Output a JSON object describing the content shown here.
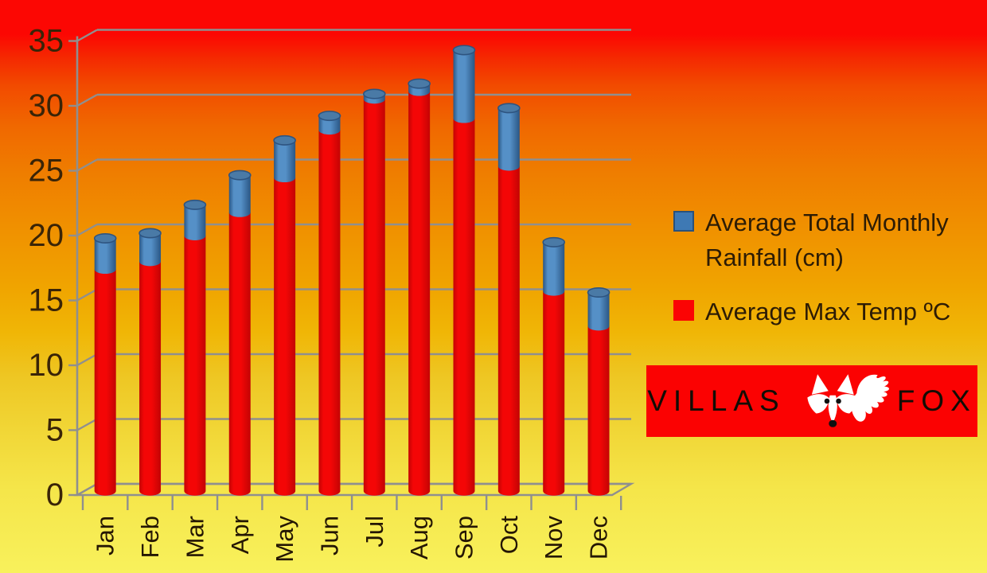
{
  "chart_data": {
    "type": "bar",
    "subtype": "stacked-3d-cylinder",
    "categories": [
      "Jan",
      "Feb",
      "Mar",
      "Apr",
      "May",
      "Jun",
      "Jul",
      "Aug",
      "Sep",
      "Oct",
      "Nov",
      "Dec"
    ],
    "series": [
      {
        "name": "Average Max Temp ºC",
        "stack_position": "bottom",
        "values": [
          17.2,
          17.8,
          19.8,
          21.6,
          24.3,
          28.0,
          30.4,
          31.0,
          28.9,
          25.2,
          15.5,
          12.8
        ],
        "colors": {
          "edge": "#c30404",
          "body": "#f40606",
          "top_fill": "#d9413f",
          "top_stroke": "#a31a1a"
        }
      },
      {
        "name": "Average Total Monthly Rainfall (cm)",
        "stack_position": "top",
        "values": [
          2.4,
          2.2,
          2.4,
          2.9,
          2.9,
          1.1,
          0.4,
          0.6,
          5.3,
          4.5,
          3.8,
          2.6
        ],
        "colors": {
          "edge": "#2a5684",
          "body": "#5590c7",
          "top_fill": "#4a7aa6",
          "top_stroke": "#2e5480"
        }
      }
    ],
    "title": "",
    "xlabel": "",
    "ylabel": "",
    "ylim": [
      0,
      35
    ],
    "ytick_step": 5,
    "yticks": [
      "0",
      "5",
      "10",
      "15",
      "20",
      "25",
      "30",
      "35"
    ],
    "grid": true,
    "legend_position": "right",
    "axis_color": "#8f8f8f",
    "tick_label_color": "#3a2407",
    "month_label_color": "#241603"
  },
  "legend": {
    "items": [
      {
        "label": "Average Total Monthly Rainfall (cm)",
        "color": "#3e79b4",
        "border": "#29517c"
      },
      {
        "label": "Average Max Temp ºC",
        "color": "#fb0404",
        "border": "#fb0404"
      }
    ]
  },
  "logo": {
    "left": "VILLAS",
    "right": "FOX",
    "icon": "fox-icon",
    "background": "#fb0202"
  }
}
